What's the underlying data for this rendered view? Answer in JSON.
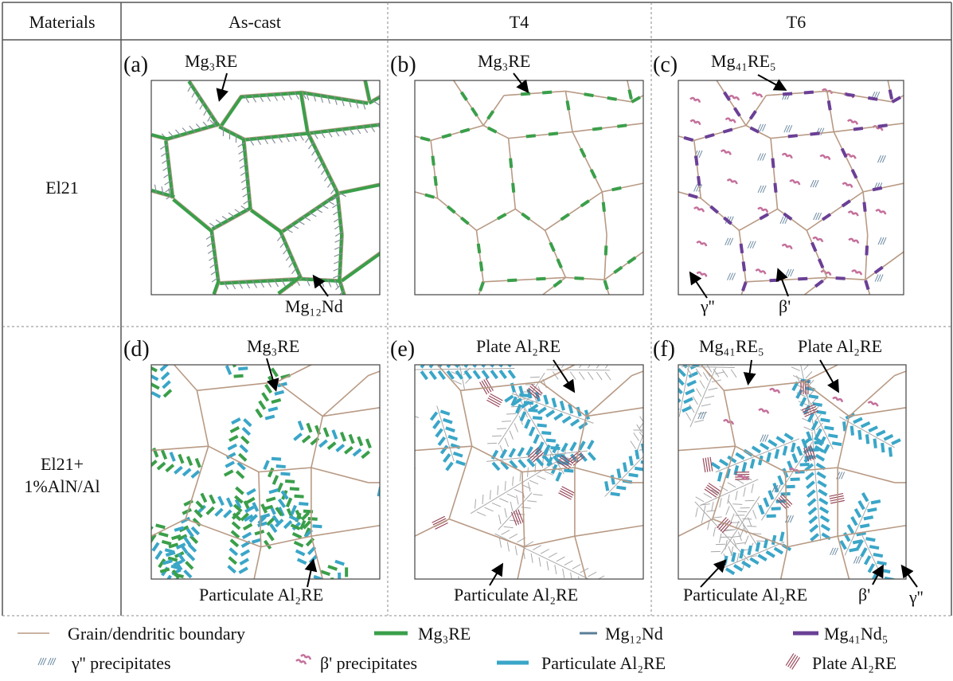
{
  "header": {
    "materials": "Materials",
    "columns": [
      "As-cast",
      "T4",
      "T6"
    ]
  },
  "rows": [
    {
      "label": [
        "El21"
      ]
    },
    {
      "label": [
        "El21+",
        "1%AlN/Al"
      ]
    }
  ],
  "panels": [
    {
      "letter": "(a)",
      "labels": [
        "Mg₃RE",
        "Mg₁₂Nd"
      ]
    },
    {
      "letter": "(b)",
      "labels": [
        "Mg₃RE"
      ]
    },
    {
      "letter": "(c)",
      "labels": [
        "Mg₄₁RE₅",
        "γ''",
        "β'"
      ]
    },
    {
      "letter": "(d)",
      "labels": [
        "Mg₃RE",
        "Particulate Al₂RE"
      ]
    },
    {
      "letter": "(e)",
      "labels": [
        "Plate Al₂RE",
        "Particulate Al₂RE"
      ]
    },
    {
      "letter": "(f)",
      "labels": [
        "Mg₄₁RE₅",
        "Plate Al₂RE",
        "Particulate Al₂RE",
        "β'",
        "γ''"
      ]
    }
  ],
  "legend": [
    "Grain/dendritic boundary",
    "Mg₃RE",
    "Mg₁₂Nd",
    "Mg₄₁Nd₅",
    "γ'' precipitates",
    "β' precipitates",
    "Particulate  Al₂RE",
    "Plate Al₂RE"
  ]
}
